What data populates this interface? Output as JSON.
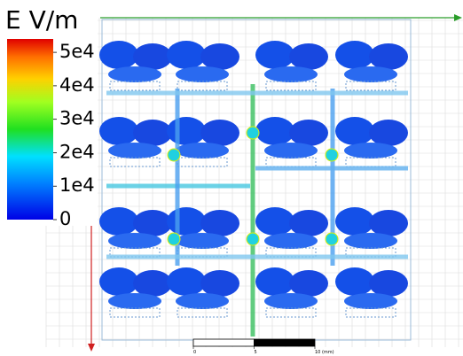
{
  "legend": {
    "title": "E V/m",
    "range": [
      0,
      54000
    ],
    "ticks": [
      {
        "value": 50000,
        "label": "5e4"
      },
      {
        "value": 40000,
        "label": "4e4"
      },
      {
        "value": 30000,
        "label": "3e4"
      },
      {
        "value": 20000,
        "label": "2e4"
      },
      {
        "value": 10000,
        "label": "1e4"
      },
      0
    ]
  },
  "scale_bar": {
    "ticks": [
      0,
      5,
      {
        "value": 10,
        "label": "10 (mm)"
      }
    ]
  }
}
